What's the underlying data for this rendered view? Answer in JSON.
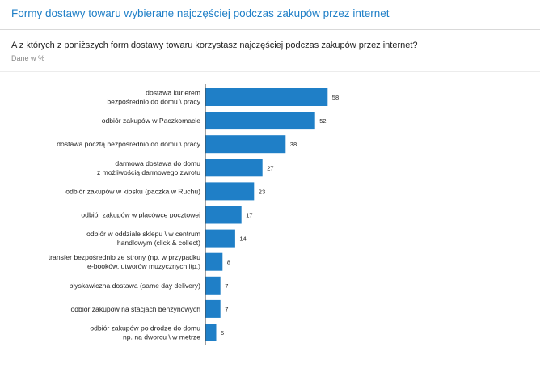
{
  "header": {
    "title": "Formy dostawy towaru wybierane najczęściej podczas zakupów przez internet"
  },
  "question": "A z których z poniższych form dostawy towaru korzystasz najczęściej podczas zakupów przez internet?",
  "unit_note": "Dane w %",
  "chart_data": {
    "type": "bar",
    "orientation": "horizontal",
    "categories": [
      [
        "dostawa kurierem",
        "bezpośrednio do domu \\ pracy"
      ],
      [
        "odbiór zakupów w Paczkomacie"
      ],
      [
        "dostawa pocztą bezpośrednio do domu \\ pracy"
      ],
      [
        "darmowa dostawa do domu",
        "z możliwością darmowego zwrotu"
      ],
      [
        "odbiór zakupów w kiosku (paczka w Ruchu)"
      ],
      [
        "odbiór zakupów w placówce pocztowej"
      ],
      [
        "odbiór w oddziale sklepu \\ w centrum",
        "handlowym (click & collect)"
      ],
      [
        "transfer bezpośrednio ze strony (np. w przypadku",
        "e-booków, utworów muzycznych itp.)"
      ],
      [
        "błyskawiczna dostawa (same day delivery)"
      ],
      [
        "odbiór zakupów na stacjach benzynowych"
      ],
      [
        "odbiór zakupów po drodze do domu",
        "np. na dworcu \\ w metrze"
      ]
    ],
    "values": [
      58,
      52,
      38,
      27,
      23,
      17,
      14,
      8,
      7,
      7,
      5
    ],
    "xlim": [
      0,
      60
    ],
    "bar_color": "#1f7fc7",
    "grid": false,
    "legend": "none"
  }
}
